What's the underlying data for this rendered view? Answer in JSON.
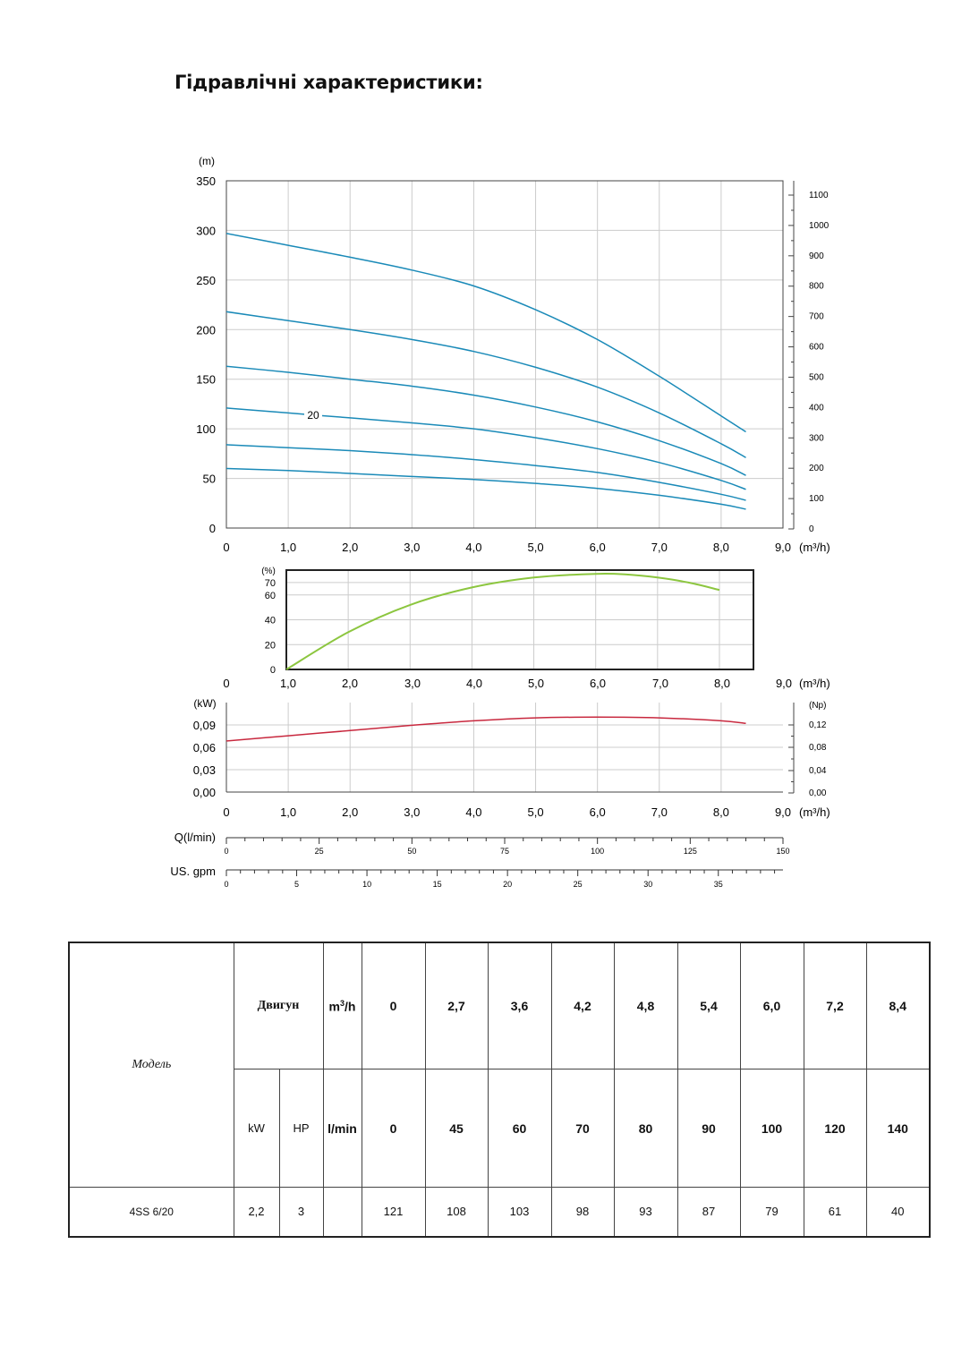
{
  "title": "Гідравлічні характеристики:",
  "chart_data": [
    {
      "type": "line",
      "ylabel": "(m)",
      "xlabel": "(m³/h)",
      "x_ticks": [
        "0",
        "1,0",
        "2,0",
        "3,0",
        "4,0",
        "5,0",
        "6,0",
        "7,0",
        "8,0",
        "9,0"
      ],
      "y_ticks": [
        "0",
        "50",
        "100",
        "150",
        "200",
        "250",
        "300",
        "350"
      ],
      "y2_ticks": [
        "0",
        "100",
        "200",
        "300",
        "400",
        "500",
        "600",
        "700",
        "800",
        "900",
        "1000",
        "1100"
      ],
      "xlim": [
        0,
        9
      ],
      "ylim": [
        0,
        350
      ],
      "grid": true,
      "annotation": "20",
      "series": [
        {
          "x": [
            0,
            1,
            2,
            3,
            4,
            5,
            6,
            7,
            8,
            8.4
          ],
          "values": [
            297,
            285,
            273,
            260,
            244,
            220,
            190,
            153,
            113,
            97
          ]
        },
        {
          "x": [
            0,
            1,
            2,
            3,
            4,
            5,
            6,
            7,
            8,
            8.4
          ],
          "values": [
            218,
            209,
            200,
            190,
            178,
            162,
            142,
            116,
            85,
            71
          ]
        },
        {
          "x": [
            0,
            1,
            2,
            3,
            4,
            5,
            6,
            7,
            8,
            8.4
          ],
          "values": [
            163,
            157,
            150,
            143,
            134,
            122,
            107,
            88,
            65,
            53
          ]
        },
        {
          "x": [
            0,
            1,
            2,
            3,
            4,
            5,
            6,
            7,
            8,
            8.4
          ],
          "values": [
            121,
            116,
            111,
            106,
            100,
            91,
            80,
            66,
            48,
            39
          ]
        },
        {
          "x": [
            0,
            1,
            2,
            3,
            4,
            5,
            6,
            7,
            8,
            8.4
          ],
          "values": [
            84,
            81,
            78,
            74,
            69,
            63,
            56,
            46,
            34,
            28
          ]
        },
        {
          "x": [
            0,
            1,
            2,
            3,
            4,
            5,
            6,
            7,
            8,
            8.4
          ],
          "values": [
            60,
            58,
            55,
            52,
            49,
            45,
            40,
            33,
            24,
            19
          ]
        }
      ]
    },
    {
      "type": "line",
      "ylabel": "(%)",
      "xlabel": "(m³/h)",
      "x_ticks": [
        "0",
        "1,0",
        "2,0",
        "3,0",
        "4,0",
        "5,0",
        "6,0",
        "7,0",
        "8,0",
        "9,0"
      ],
      "y_ticks": [
        "0",
        "20",
        "40",
        "60",
        "70"
      ],
      "xlim": [
        1,
        9
      ],
      "ylim": [
        0,
        80
      ],
      "grid": true,
      "series": [
        {
          "x": [
            1,
            2,
            3,
            4,
            5,
            6,
            6.5,
            7,
            7.5,
            8
          ],
          "values": [
            0,
            30,
            52,
            66,
            74,
            77,
            76.5,
            74,
            70,
            64
          ]
        }
      ]
    },
    {
      "type": "line",
      "ylabel": "(kW)",
      "y2label": "(Np)",
      "xlabel": "(m³/h)",
      "x_ticks": [
        "0",
        "1,0",
        "2,0",
        "3,0",
        "4,0",
        "5,0",
        "6,0",
        "7,0",
        "8,0",
        "9,0"
      ],
      "y_ticks": [
        "0,00",
        "0,03",
        "0,06",
        "0,09"
      ],
      "y2_ticks": [
        "0,00",
        "0,04",
        "0,08",
        "0,12"
      ],
      "xlim": [
        0,
        9
      ],
      "ylim": [
        0,
        0.12
      ],
      "grid": true,
      "series": [
        {
          "x": [
            0,
            1,
            2,
            3,
            4,
            5,
            6,
            7,
            8,
            8.4
          ],
          "values": [
            0.0685,
            0.0755,
            0.0825,
            0.0895,
            0.0955,
            0.0995,
            0.1005,
            0.0995,
            0.0955,
            0.092
          ]
        }
      ]
    }
  ],
  "scales": {
    "q_label": "Q(l/min)",
    "q_ticks": [
      "0",
      "25",
      "50",
      "75",
      "100",
      "125",
      "150"
    ],
    "gpm_label": "US. gpm",
    "gpm_ticks": [
      "0",
      "5",
      "10",
      "15",
      "20",
      "25",
      "30",
      "35"
    ]
  },
  "table": {
    "model_header": "Модель",
    "motor_header": "Двигун",
    "flow_unit_1": "m³/h",
    "flow_unit_2": "l/min",
    "kw_header": "kW",
    "hp_header": "HP",
    "flows_m3h": [
      "0",
      "2,7",
      "3,6",
      "4,2",
      "4,8",
      "5,4",
      "6,0",
      "7,2",
      "8,4"
    ],
    "flows_lmin": [
      "0",
      "45",
      "60",
      "70",
      "80",
      "90",
      "100",
      "120",
      "140"
    ],
    "rows": [
      {
        "model": "4SS 6/20",
        "kw": "2,2",
        "hp": "3",
        "heads": [
          "121",
          "108",
          "103",
          "98",
          "93",
          "87",
          "79",
          "61",
          "40"
        ]
      }
    ]
  },
  "colors": {
    "head_curve": "#1a8ab8",
    "efficiency_curve": "#8cc63f",
    "power_curve": "#c8283e",
    "grid": "#cccccc"
  }
}
